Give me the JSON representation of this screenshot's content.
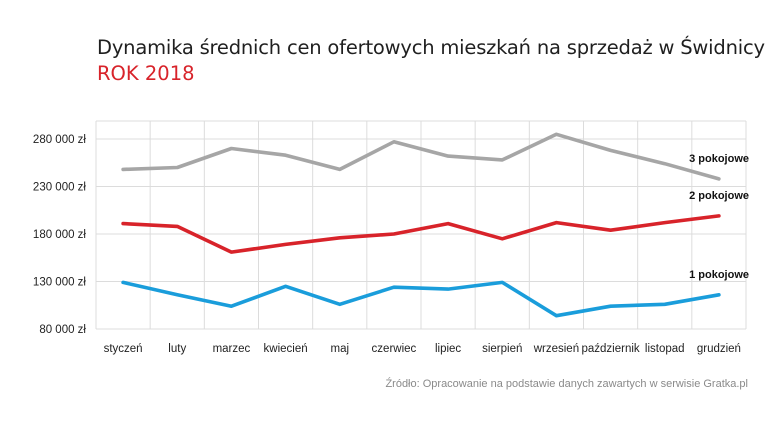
{
  "header": {
    "title": "Dynamika średnich cen ofertowych mieszkań na sprzedaż w Świdnicy",
    "subtitle": "ROK 2018"
  },
  "footer": {
    "source": "Źródło: Opracowanie na podstawie danych zawartych w serwisie Gratka.pl"
  },
  "colors": {
    "accent": "#d8232a",
    "series_1": "#1a9ddb",
    "series_2": "#d8232a",
    "series_3": "#a6a6a6",
    "grid": "#dcdcdc"
  },
  "chart_data": {
    "type": "line",
    "title": "Dynamika średnich cen ofertowych mieszkań na sprzedaż w Świdnicy",
    "subtitle": "ROK 2018",
    "categories": [
      "styczeń",
      "luty",
      "marzec",
      "kwiecień",
      "maj",
      "czerwiec",
      "lipiec",
      "sierpień",
      "wrzesień",
      "październik",
      "listopad",
      "grudzień"
    ],
    "y_ticks": [
      80000,
      130000,
      180000,
      230000,
      280000
    ],
    "y_tick_labels": [
      "80 000 zł",
      "130 000 zł",
      "180 000 zł",
      "230 000 zł",
      "280 000 zł"
    ],
    "ylim": [
      80000,
      300000
    ],
    "grid": true,
    "series": [
      {
        "name": "3 pokojowe",
        "color": "#a6a6a6",
        "values": [
          248000,
          250000,
          270000,
          263000,
          248000,
          277000,
          262000,
          258000,
          285000,
          268000,
          254000,
          238000
        ]
      },
      {
        "name": "2 pokojowe",
        "color": "#d8232a",
        "values": [
          191000,
          188000,
          161000,
          169000,
          176000,
          180000,
          191000,
          175000,
          192000,
          184000,
          192000,
          199000
        ]
      },
      {
        "name": "1 pokojowe",
        "color": "#1a9ddb",
        "values": [
          129000,
          116000,
          104000,
          125000,
          106000,
          124000,
          122000,
          129000,
          94000,
          104000,
          106000,
          116000
        ]
      }
    ]
  }
}
